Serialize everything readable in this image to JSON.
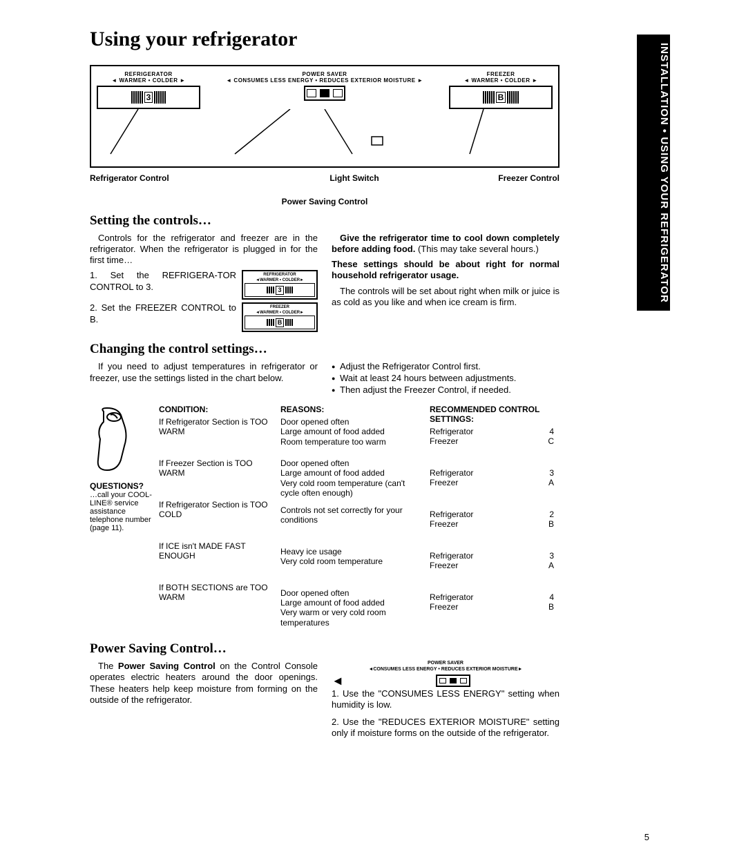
{
  "sidebar_tab": "INSTALLATION • USING YOUR REFRIGERATOR",
  "title": "Using your refrigerator",
  "panel": {
    "refrigerator": {
      "title": "REFRIGERATOR",
      "sub": "◄ WARMER  •  COLDER ►",
      "value": "3"
    },
    "power_saver": {
      "title": "POWER  SAVER",
      "sub": "◄ CONSUMES LESS ENERGY • REDUCES EXTERIOR MOISTURE ►"
    },
    "freezer": {
      "title": "FREEZER",
      "sub": "◄ WARMER  •  COLDER ►",
      "value": "B"
    },
    "callouts": {
      "refrigerator": "Refrigerator Control",
      "power_saving": "Power Saving Control",
      "light": "Light Switch",
      "freezer": "Freezer Control"
    }
  },
  "setting": {
    "heading": "Setting the controls…",
    "intro": "Controls for the refrigerator and freezer are in the refrigerator. When the refrigerator is plugged in for the first time…",
    "step1": "1. Set the REFRIGERA-TOR CONTROL to 3.",
    "step2": "2. Set the FREEZER CONTROL to B.",
    "right_top": "Give the refrigerator time to cool down completely before adding food. (This may take several hours.)",
    "right_bold": "These settings should be about right for normal household refrigerator usage.",
    "right_body": "The controls will be set about right when milk or juice is as cold as you like and when ice cream is firm.",
    "mini_ref": {
      "title": "REFRIGERATOR",
      "sub": "◄WARMER • COLDER►",
      "value": "3"
    },
    "mini_frz": {
      "title": "FREEZER",
      "sub": "◄WARMER • COLDER►",
      "value": "B"
    }
  },
  "changing": {
    "heading": "Changing the control settings…",
    "intro": "If you need to adjust temperatures in refrigerator or freezer, use the settings listed in the chart below.",
    "bullets": [
      "Adjust the Refrigerator Control first.",
      "Wait at least 24 hours between adjustments.",
      "Then adjust the Freezer Control, if needed."
    ]
  },
  "chart": {
    "questions_label": "QUESTIONS?",
    "questions_body": "…call your COOL-LINE® service assistance telephone number (page 11).",
    "headers": {
      "condition": "CONDITION:",
      "reasons": "REASONS:",
      "recommended": "RECOMMENDED CONTROL SETTINGS:"
    },
    "rows": [
      {
        "condition": "If Refrigerator Section is TOO WARM",
        "reasons": "Door opened often\nLarge amount of food added\nRoom temperature too warm",
        "rec": [
          [
            "Refrigerator",
            "4"
          ],
          [
            "Freezer",
            "C"
          ]
        ]
      },
      {
        "condition": "If Freezer Section is TOO WARM",
        "reasons": "Door opened often\nLarge amount of food added\nVery cold room temperature (can't cycle often enough)",
        "rec": [
          [
            "Refrigerator",
            "3"
          ],
          [
            "Freezer",
            "A"
          ]
        ]
      },
      {
        "condition": "If Refrigerator Section is TOO COLD",
        "reasons": "Controls not set correctly for your conditions",
        "rec": [
          [
            "Refrigerator",
            "2"
          ],
          [
            "Freezer",
            "B"
          ]
        ]
      },
      {
        "condition": "If ICE isn't MADE FAST ENOUGH",
        "reasons": "Heavy ice usage\nVery cold room temperature",
        "rec": [
          [
            "Refrigerator",
            "3"
          ],
          [
            "Freezer",
            "A"
          ]
        ]
      },
      {
        "condition": "If BOTH SECTIONS are TOO WARM",
        "reasons": "Door opened often\nLarge amount of food added\nVery warm or very cold room temperatures",
        "rec": [
          [
            "Refrigerator",
            "4"
          ],
          [
            "Freezer",
            "B"
          ]
        ]
      }
    ]
  },
  "power": {
    "heading": "Power Saving Control…",
    "left": "The Power Saving Control on the Control Console operates electric heaters around the door openings. These heaters help keep moisture from forming on the outside of the refrigerator.",
    "mini_label": "POWER SAVER\n◄CONSUMES LESS ENERGY • REDUCES EXTERIOR MOISTURE►",
    "step1": "1. Use the \"CONSUMES LESS ENERGY\" setting when humidity is low.",
    "step2": "2. Use the \"REDUCES EXTERIOR MOISTURE\" setting only if moisture forms on the outside of the refrigerator."
  },
  "page_number": "5"
}
